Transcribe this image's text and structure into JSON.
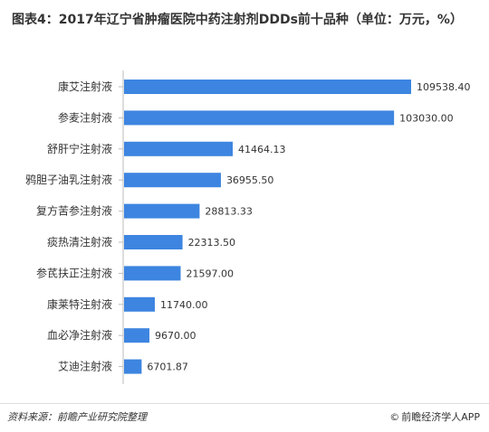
{
  "title": "图表4：2017年辽宁省肿瘤医院中药注射剂DDDs前十品种（单位：万元，%）",
  "source": "资料来源：前瞻产业研究院整理",
  "brand": "前瞻经济学人APP",
  "brand_icon": "copyright-icon",
  "colors": {
    "bar": "#3D85E0",
    "text": "#333333"
  },
  "chart_data": {
    "type": "bar",
    "orientation": "horizontal",
    "title": "图表4：2017年辽宁省肿瘤医院中药注射剂DDDs前十品种（单位：万元，%）",
    "categories": [
      "康艾注射液",
      "参麦注射液",
      "舒肝宁注射液",
      "鸦胆子油乳注射液",
      "复方苦参注射液",
      "痰热清注射液",
      "参芪扶正注射液",
      "康莱特注射液",
      "血必净注射液",
      "艾迪注射液"
    ],
    "values": [
      109538.4,
      103030.0,
      41464.13,
      36955.5,
      28813.33,
      22313.5,
      21597.0,
      11740.0,
      9670.0,
      6701.87
    ],
    "value_labels": [
      "109538.40",
      "103030.00",
      "41464.13",
      "36955.50",
      "28813.33",
      "22313.50",
      "21597.00",
      "11740.00",
      "9670.00",
      "6701.87"
    ],
    "xlim": [
      0,
      109538.4
    ],
    "grid": false,
    "legend": "none"
  }
}
